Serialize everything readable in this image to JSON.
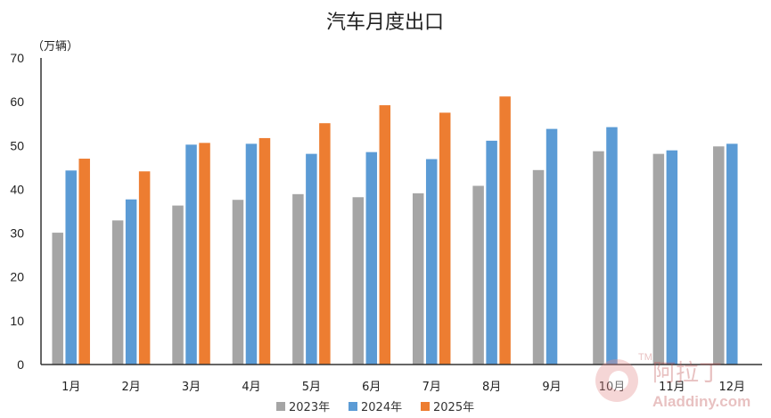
{
  "chart_data": {
    "type": "bar",
    "title": "汽车月度出口",
    "ylabel": "（万辆）",
    "xlabel": "",
    "ylim": [
      0,
      70
    ],
    "yticks": [
      0,
      10,
      20,
      30,
      40,
      50,
      60,
      70
    ],
    "grid": false,
    "legend_position": "bottom",
    "categories": [
      "1月",
      "2月",
      "3月",
      "4月",
      "5月",
      "6月",
      "7月",
      "8月",
      "9月",
      "10月",
      "11月",
      "12月"
    ],
    "series": [
      {
        "name": "2023年",
        "color": "#A5A5A5",
        "values": [
          30.1,
          32.9,
          36.3,
          37.6,
          38.9,
          38.2,
          39.1,
          40.8,
          44.4,
          48.7,
          48.1,
          49.8
        ]
      },
      {
        "name": "2024年",
        "color": "#5B9BD5",
        "values": [
          44.3,
          37.7,
          50.2,
          50.4,
          48.1,
          48.5,
          46.9,
          51.1,
          53.8,
          54.2,
          48.9,
          50.4
        ]
      },
      {
        "name": "2025年",
        "color": "#ED7D31",
        "values": [
          47.0,
          44.1,
          50.6,
          51.7,
          55.1,
          59.2,
          57.5,
          61.2,
          null,
          null,
          null,
          null
        ]
      }
    ]
  },
  "watermark": {
    "brand": "阿拉丁",
    "url": "Aladdiny.com",
    "tm": "TM"
  }
}
